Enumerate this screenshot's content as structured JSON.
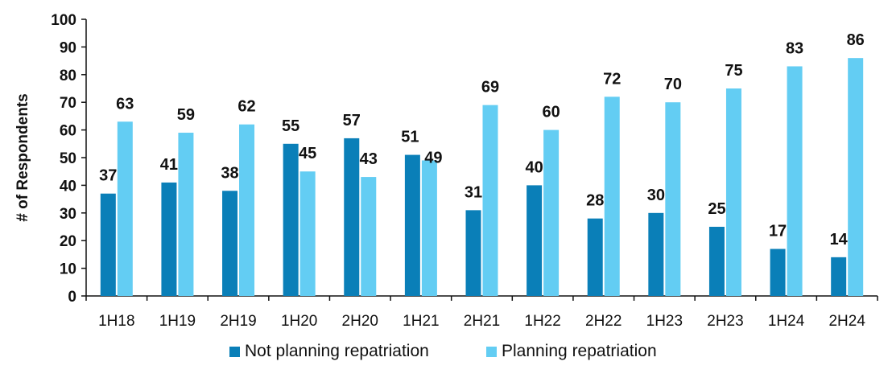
{
  "chart_data": {
    "type": "bar",
    "categories": [
      "1H18",
      "1H19",
      "2H19",
      "1H20",
      "2H20",
      "1H21",
      "2H21",
      "1H22",
      "2H22",
      "1H23",
      "2H23",
      "1H24",
      "2H24"
    ],
    "series": [
      {
        "name": "Not planning repatriation",
        "color": "#0a7fb8",
        "values": [
          37,
          41,
          38,
          55,
          57,
          51,
          31,
          40,
          28,
          30,
          25,
          17,
          14
        ]
      },
      {
        "name": "Planning repatriation",
        "color": "#63cdf3",
        "values": [
          63,
          59,
          62,
          45,
          43,
          49,
          69,
          60,
          72,
          70,
          75,
          83,
          86
        ]
      }
    ],
    "ylabel": "# of Respondents",
    "ylim": [
      0,
      100
    ],
    "yticks": [
      0,
      10,
      20,
      30,
      40,
      50,
      60,
      70,
      80,
      90,
      100
    ],
    "grid": false,
    "data_labels": true,
    "legend_position": "bottom"
  }
}
